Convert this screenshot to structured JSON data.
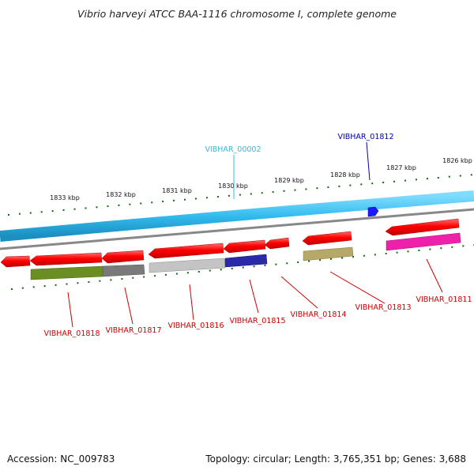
{
  "title": "Vibrio harveyi ATCC BAA-1116 chromosome I, complete genome",
  "footer": {
    "accession": "Accession: NC_009783",
    "summary": "Topology: circular; Length: 3,765,351 bp; Genes: 3,688"
  },
  "ticks": [
    "1826 kbp",
    "1827 kbp",
    "1828 kbp",
    "1829 kbp",
    "1830 kbp",
    "1831 kbp",
    "1832 kbp",
    "1833 kbp"
  ],
  "genes": {
    "reverse": [
      "VIBHAR_01811",
      "VIBHAR_01813",
      "VIBHAR_01814",
      "VIBHAR_01815",
      "VIBHAR_01816",
      "VIBHAR_01817",
      "VIBHAR_01818"
    ],
    "forward": [
      "VIBHAR_01812"
    ],
    "rna": [
      "VIBHAR_00002"
    ]
  },
  "colors": {
    "cds": "#ff0000",
    "gene_label": "#cc0000",
    "forward_label": "#0000aa",
    "rna_label": "#33bbdd",
    "backbone": "#33bbee",
    "tick": "#116611"
  }
}
